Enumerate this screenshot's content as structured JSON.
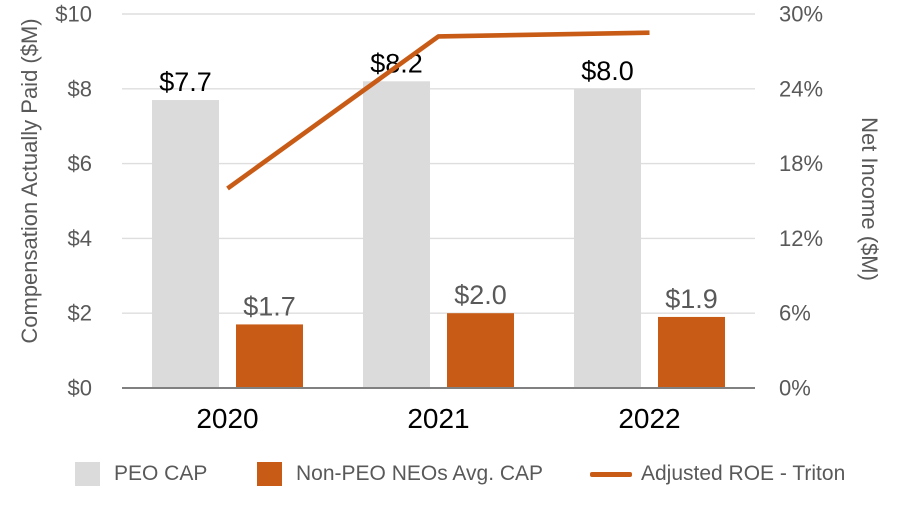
{
  "chart_data": {
    "type": "combo",
    "categories": [
      "2020",
      "2021",
      "2022"
    ],
    "series": [
      {
        "name": "PEO CAP",
        "type": "bar",
        "axis": "left",
        "values": [
          7.7,
          8.2,
          8.0
        ],
        "data_labels": [
          "$7.7",
          "$8.2",
          "$8.0"
        ],
        "color": "#DBDBDC",
        "label_color": "#000000"
      },
      {
        "name": "Non-PEO NEOs Avg. CAP",
        "type": "bar",
        "axis": "left",
        "values": [
          1.7,
          2.0,
          1.9
        ],
        "data_labels": [
          "$1.7",
          "$2.0",
          "$1.9"
        ],
        "color": "#C85C17",
        "label_color": "#595959"
      },
      {
        "name": "Adjusted ROE - Triton",
        "type": "line",
        "axis": "right",
        "values": [
          16.0,
          28.2,
          28.5
        ],
        "color": "#C85C17"
      }
    ],
    "left_axis": {
      "title": "Compensation Actually Paid ($M)",
      "min": 0,
      "max": 10,
      "tick_step": 2,
      "ticks": [
        "$0",
        "$2",
        "$4",
        "$6",
        "$8",
        "$10"
      ]
    },
    "right_axis": {
      "title": "Net Income ($M)",
      "min": 0,
      "max": 30,
      "tick_step": 6,
      "ticks": [
        "0%",
        "6%",
        "12%",
        "18%",
        "24%",
        "30%"
      ]
    },
    "grid": true,
    "legend_position": "bottom"
  },
  "legend": {
    "items": [
      {
        "label": "PEO CAP",
        "swatch": "square",
        "color": "#DBDBDC"
      },
      {
        "label": "Non-PEO NEOs Avg. CAP",
        "swatch": "square",
        "color": "#C85C17"
      },
      {
        "label": "Adjusted ROE - Triton",
        "swatch": "line",
        "color": "#C85C17"
      }
    ]
  },
  "colors": {
    "bar_gray": "#DBDBDC",
    "accent_orange": "#C85C17",
    "text_gray": "#595959",
    "text_black": "#000000",
    "gridline": "#DEDEDE",
    "axis_line": "#808080"
  }
}
